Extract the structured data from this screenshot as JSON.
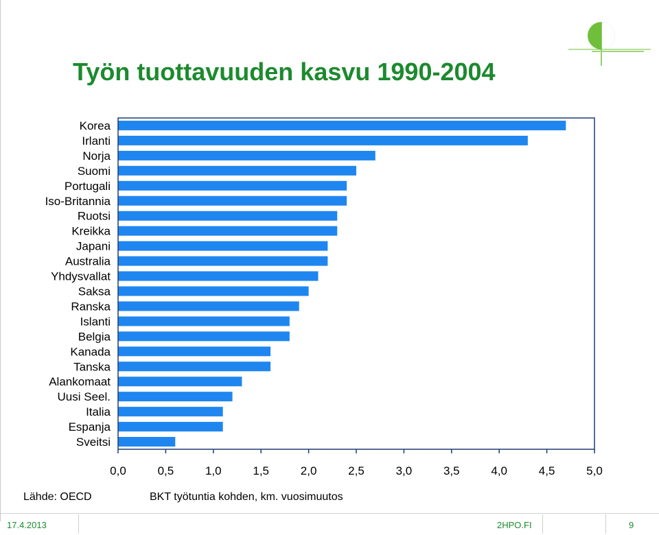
{
  "title": "Työn tuottavuuden kasvu 1990-2004",
  "source": "Lähde: OECD",
  "footer": {
    "date": "17.4.2013",
    "site": "2HPO.FI",
    "page": "9"
  },
  "colors": {
    "bar": "#1f86f0",
    "title": "#1c8a2e",
    "axis": "#1f3a70"
  },
  "chart_data": {
    "type": "bar",
    "orientation": "horizontal",
    "categories": [
      "Korea",
      "Irlanti",
      "Norja",
      "Suomi",
      "Portugali",
      "Iso-Britannia",
      "Ruotsi",
      "Kreikka",
      "Japani",
      "Australia",
      "Yhdysvallat",
      "Saksa",
      "Ranska",
      "Islanti",
      "Belgia",
      "Kanada",
      "Tanska",
      "Alankomaat",
      "Uusi Seel.",
      "Italia",
      "Espanja",
      "Sveitsi"
    ],
    "values": [
      4.7,
      4.3,
      2.7,
      2.5,
      2.4,
      2.4,
      2.3,
      2.3,
      2.2,
      2.2,
      2.1,
      2.0,
      1.9,
      1.8,
      1.8,
      1.6,
      1.6,
      1.3,
      1.2,
      1.1,
      1.1,
      0.6
    ],
    "title": "Työn tuottavuuden kasvu 1990-2004",
    "xlabel": "BKT työtuntia kohden, km. vuosimuutos",
    "ylabel": "",
    "xlim": [
      0,
      5
    ],
    "xticks": [
      "0,0",
      "0,5",
      "1,0",
      "1,5",
      "2,0",
      "2,5",
      "3,0",
      "3,5",
      "4,0",
      "4,5",
      "5,0"
    ],
    "grid": false,
    "legend": "none"
  }
}
